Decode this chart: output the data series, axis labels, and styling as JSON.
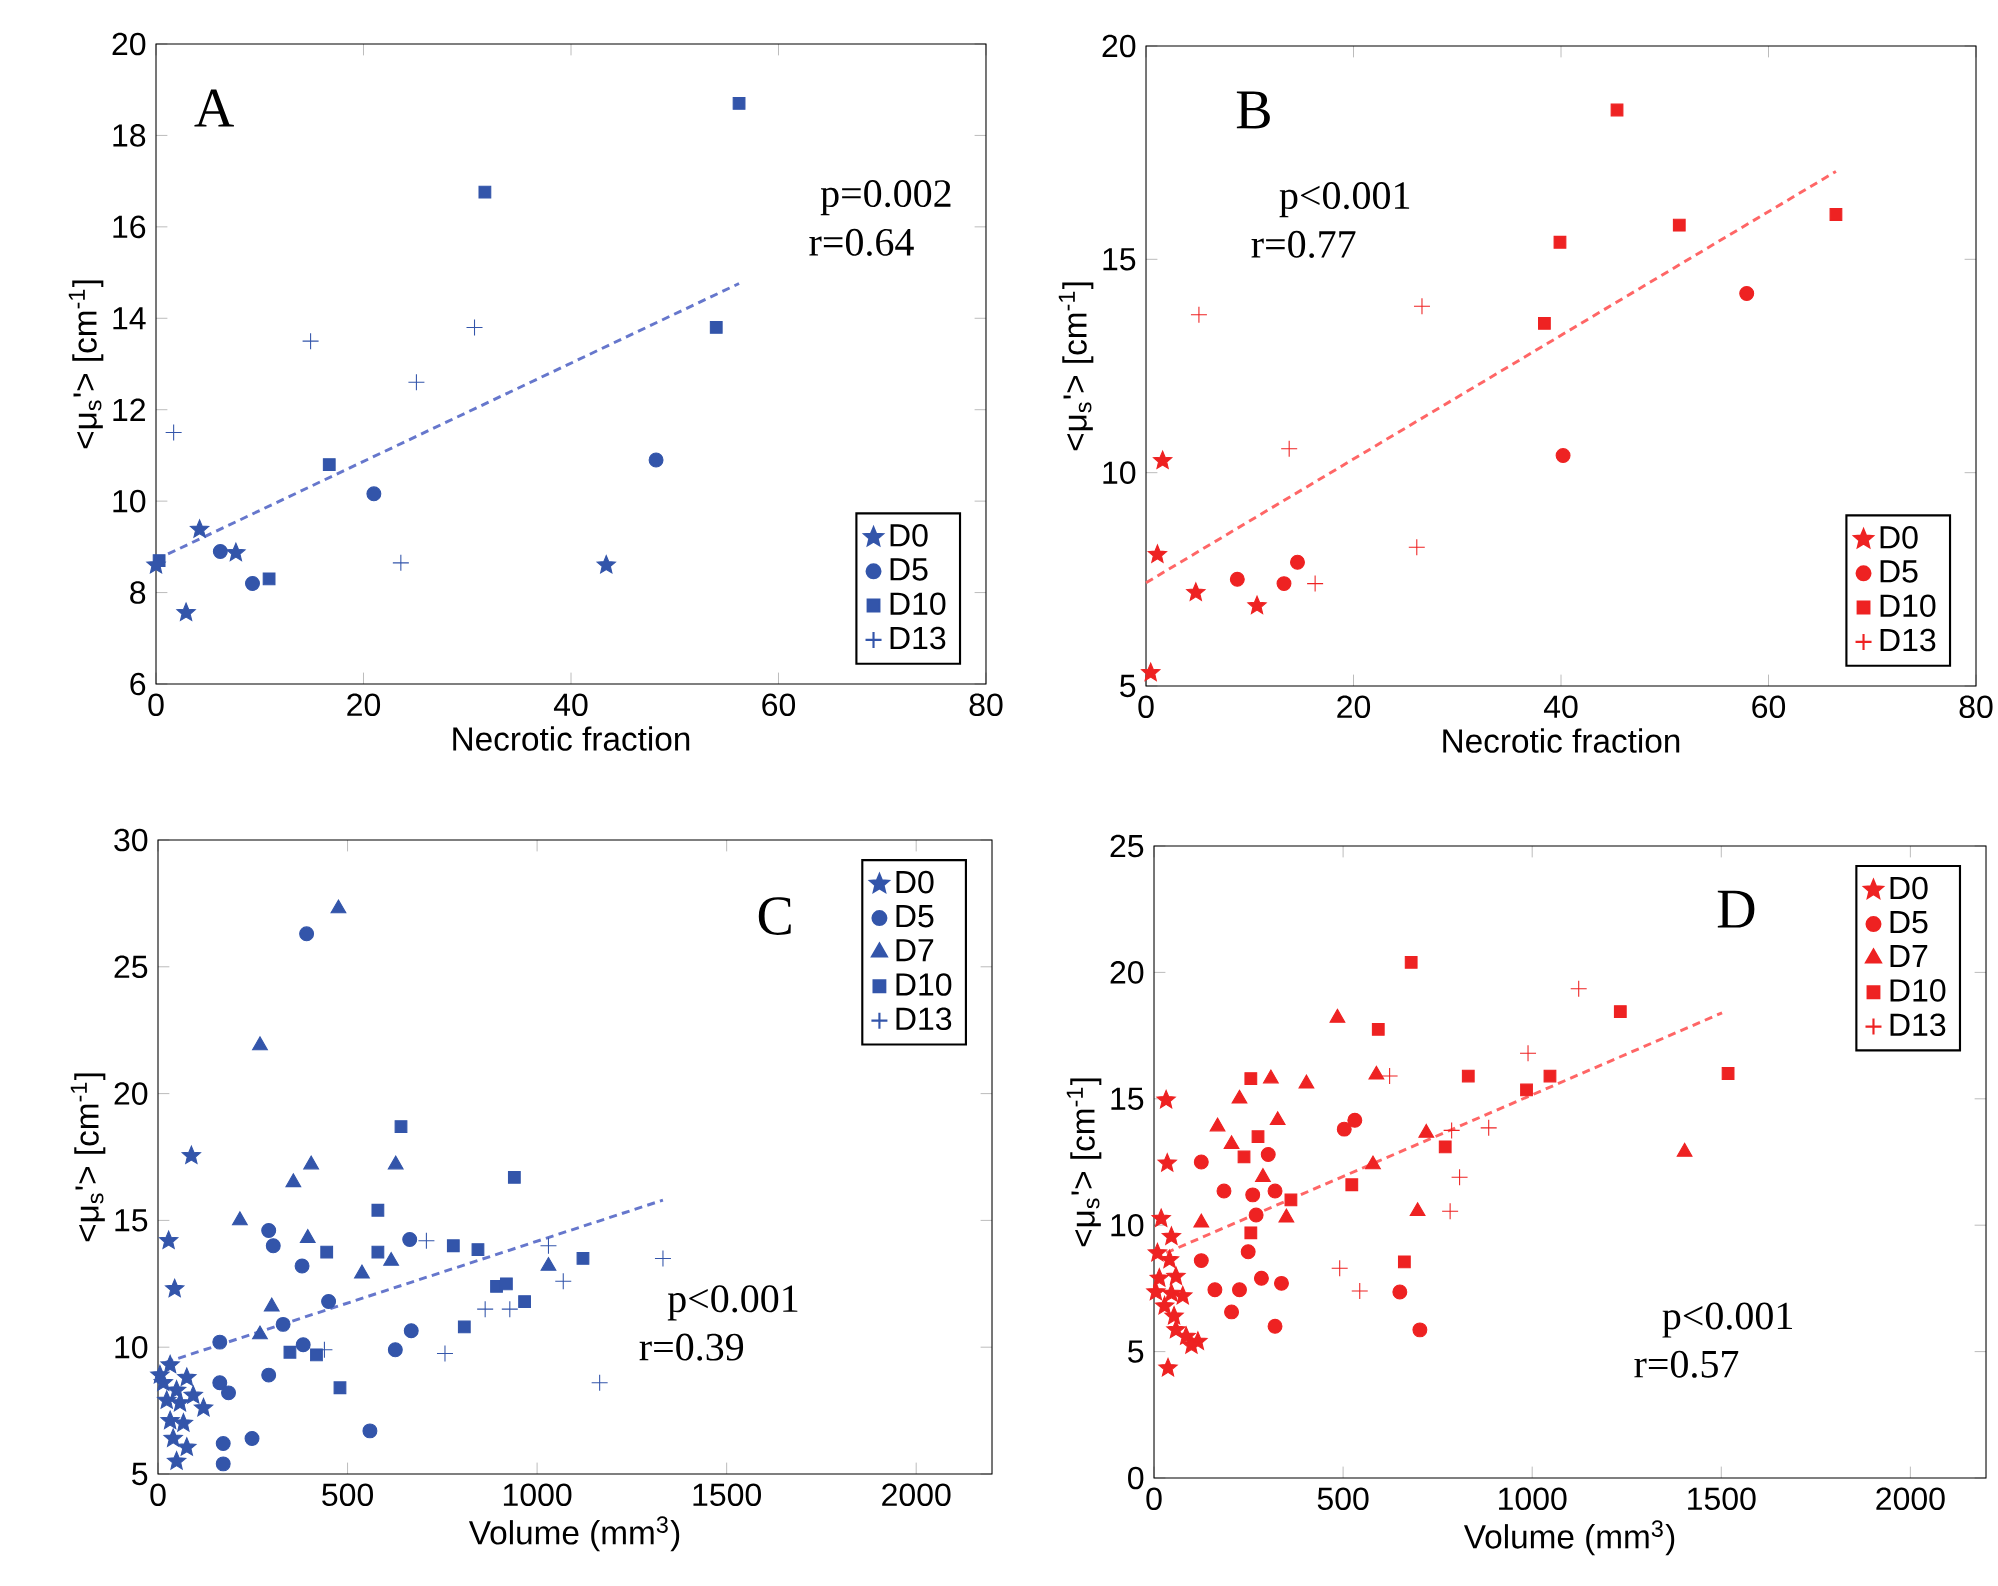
{
  "chart_data": [
    {
      "type": "scatter",
      "title": "A",
      "xlabel": "Necrotic fraction",
      "ylabel": "<μ$_{s}$'> [cm$^{-1}$]",
      "annotations": [
        "p=0.002",
        "r=0.64"
      ],
      "xlim": [
        0,
        80
      ],
      "ylim": [
        6,
        20
      ],
      "xticks": [
        0,
        20,
        40,
        60,
        80
      ],
      "yticks": [
        6,
        8,
        10,
        12,
        14,
        16,
        18,
        20
      ],
      "legend": "bottom right",
      "series": [
        {
          "name": "D0",
          "color": "#3355aa",
          "marker": "star",
          "x": [
            4.2,
            2.9,
            7.7,
            0,
            43.4
          ],
          "values": [
            9.38,
            7.56,
            8.87,
            8.6,
            8.6
          ]
        },
        {
          "name": "D5",
          "color": "#3355aa",
          "marker": "circle",
          "x": [
            6.2,
            9.3,
            21,
            48.2
          ],
          "values": [
            8.9,
            8.2,
            10.16,
            10.9
          ]
        },
        {
          "name": "D10",
          "color": "#3355aa",
          "marker": "square",
          "x": [
            0.3,
            10.9,
            16.7,
            31.7,
            54,
            56.2
          ],
          "values": [
            8.7,
            8.3,
            10.8,
            16.76,
            13.8,
            18.7
          ]
        },
        {
          "name": "D13",
          "color": "#3355aa",
          "marker": "cross",
          "x": [
            1.7,
            14.9,
            25.1,
            30.7,
            23.6
          ],
          "values": [
            11.5,
            13.5,
            12.6,
            13.8,
            8.65
          ]
        },
        {
          "type": "line",
          "color": "#6677cc",
          "marker": "none",
          "line_style": "dashed",
          "x": [
            0,
            56.2
          ],
          "values": [
            8.72,
            14.76
          ]
        }
      ]
    },
    {
      "type": "scatter",
      "title": "B",
      "xlabel": "Necrotic fraction",
      "ylabel": "<μ$_{s}$'> [cm$^{-1}$]",
      "annotations": [
        "p<0.001",
        "r=0.77"
      ],
      "xlim": [
        0,
        80
      ],
      "ylim": [
        5,
        20
      ],
      "xticks": [
        0,
        20,
        40,
        60,
        80
      ],
      "yticks": [
        5,
        10,
        15,
        20
      ],
      "legend": "bottom right",
      "series": [
        {
          "name": "D0",
          "color": "#ee2222",
          "marker": "star",
          "x": [
            0.45,
            1.1,
            1.6,
            4.8,
            10.7
          ],
          "values": [
            5.31,
            8.08,
            10.28,
            7.19,
            6.88
          ]
        },
        {
          "name": "D5",
          "color": "#ee2222",
          "marker": "circle",
          "x": [
            8.8,
            13.3,
            14.6,
            40.2,
            57.9
          ],
          "values": [
            7.5,
            7.4,
            7.9,
            10.4,
            14.2
          ]
        },
        {
          "name": "D10",
          "color": "#ee2222",
          "marker": "square",
          "x": [
            38.4,
            39.9,
            45.4,
            51.4,
            66.5
          ],
          "values": [
            13.5,
            15.4,
            18.5,
            15.8,
            16.05
          ]
        },
        {
          "name": "D13",
          "color": "#ee2222",
          "marker": "cross",
          "x": [
            5.1,
            13.8,
            16.3,
            26.1,
            26.6
          ],
          "values": [
            13.7,
            10.56,
            7.4,
            8.25,
            13.9
          ]
        },
        {
          "type": "line",
          "color": "#ff6666",
          "marker": "none",
          "line_style": "dashed",
          "x": [
            0,
            66.5
          ],
          "values": [
            7.42,
            17.06
          ]
        }
      ]
    },
    {
      "type": "scatter",
      "title": "C",
      "xlabel": "Volume (mm$^{3}$)",
      "ylabel": "<μ$_{s}$'> [cm$^{-1}$]",
      "annotations": [
        "p<0.001",
        "r=0.39"
      ],
      "xlim": [
        0,
        2200
      ],
      "ylim": [
        5,
        30
      ],
      "xticks": [
        0,
        500,
        1000,
        1500,
        2000
      ],
      "yticks": [
        5,
        10,
        15,
        20,
        25,
        30
      ],
      "legend": "top right",
      "series": [
        {
          "name": "D0",
          "color": "#3355aa",
          "marker": "star",
          "x": [
            28,
            44,
            88,
            32,
            14,
            49,
            76,
            23,
            58,
            120,
            32,
            67,
            40,
            76,
            49,
            5,
            93
          ],
          "values": [
            14.2,
            12.3,
            17.55,
            9.3,
            8.6,
            8.3,
            8.8,
            7.9,
            7.8,
            7.6,
            7.1,
            7.0,
            6.4,
            6.05,
            5.5,
            8.9,
            8.1
          ]
        },
        {
          "name": "D5",
          "color": "#3355aa",
          "marker": "circle",
          "x": [
            392,
            292,
            304,
            380,
            163,
            330,
            383,
            450,
            664,
            668,
            626,
            292,
            163,
            186,
            248,
            172,
            559,
            172
          ],
          "values": [
            26.3,
            14.6,
            14.0,
            13.2,
            10.2,
            10.9,
            10.1,
            11.8,
            14.25,
            10.65,
            9.9,
            8.9,
            8.6,
            8.2,
            6.4,
            6.2,
            6.7,
            5.4
          ]
        },
        {
          "name": "D7",
          "color": "#3355aa",
          "marker": "triangle",
          "x": [
            476,
            269,
            404,
            357,
            627,
            216,
            395,
            538,
            615,
            300,
            269,
            1030
          ],
          "values": [
            27.3,
            21.9,
            17.2,
            16.5,
            17.2,
            15.0,
            14.3,
            12.9,
            13.4,
            11.6,
            10.5,
            13.2
          ]
        },
        {
          "name": "D10",
          "color": "#3355aa",
          "marker": "square",
          "x": [
            641,
            940,
            580,
            580,
            445,
            779,
            844,
            1121,
            893,
            919,
            967,
            808,
            348,
            418,
            480
          ],
          "values": [
            18.7,
            16.7,
            15.4,
            13.75,
            13.75,
            14.0,
            13.85,
            13.5,
            12.4,
            12.5,
            11.8,
            10.8,
            9.8,
            9.7,
            8.4
          ]
        },
        {
          "name": "D13",
          "color": "#3355aa",
          "marker": "cross",
          "x": [
            708,
            1030,
            1069,
            1332,
            863,
            928,
            757,
            439,
            1165
          ],
          "values": [
            14.2,
            14.0,
            12.6,
            13.5,
            11.5,
            11.5,
            9.75,
            9.9,
            8.6
          ]
        },
        {
          "type": "line",
          "color": "#6677cc",
          "marker": "none",
          "line_style": "dashed",
          "x": [
            20,
            1332
          ],
          "values": [
            9.4,
            15.8
          ]
        }
      ]
    },
    {
      "type": "scatter",
      "title": "D",
      "xlabel": "Volume (mm$^{3}$)",
      "ylabel": "<μ$_{s}$'> [cm$^{-1}$]",
      "annotations": [
        "p<0.001",
        "r=0.57"
      ],
      "xlim": [
        0,
        2200
      ],
      "ylim": [
        0,
        25
      ],
      "xticks": [
        0,
        500,
        1000,
        1500,
        2000
      ],
      "yticks": [
        0,
        5,
        10,
        15,
        20,
        25
      ],
      "legend": "top right",
      "series": [
        {
          "name": "D0",
          "color": "#ee2222",
          "marker": "star",
          "x": [
            32,
            35,
            19,
            46,
            9,
            41,
            14,
            58,
            5,
            46,
            76,
            28,
            53,
            58,
            85,
            116,
            99,
            37
          ],
          "values": [
            14.95,
            12.45,
            10.26,
            9.55,
            8.9,
            8.63,
            7.9,
            7.97,
            7.36,
            7.3,
            7.2,
            6.8,
            6.4,
            5.86,
            5.6,
            5.4,
            5.25,
            4.35
          ]
        },
        {
          "name": "D5",
          "color": "#ee2222",
          "marker": "circle",
          "x": [
            125,
            185,
            302,
            261,
            320,
            270,
            503,
            531,
            125,
            249,
            161,
            226,
            284,
            337,
            205,
            320,
            650,
            703
          ],
          "values": [
            12.5,
            11.35,
            12.8,
            11.2,
            11.35,
            10.4,
            13.8,
            14.15,
            8.6,
            8.95,
            7.45,
            7.45,
            7.9,
            7.7,
            6.57,
            6.0,
            7.36,
            5.86
          ]
        },
        {
          "name": "D7",
          "color": "#ee2222",
          "marker": "triangle",
          "x": [
            485,
            309,
            403,
            588,
            226,
            168,
            205,
            327,
            720,
            579,
            288,
            125,
            350,
            697,
            1403
          ],
          "values": [
            18.2,
            15.8,
            15.6,
            15.95,
            15.0,
            13.9,
            13.2,
            14.15,
            13.65,
            12.4,
            11.9,
            10.1,
            10.3,
            10.55,
            12.9
          ]
        },
        {
          "name": "D10",
          "color": "#ee2222",
          "marker": "square",
          "x": [
            680,
            593,
            1233,
            256,
            831,
            1047,
            1518,
            985,
            275,
            238,
            770,
            523,
            256,
            362,
            662
          ],
          "values": [
            20.4,
            17.75,
            18.45,
            15.8,
            15.9,
            15.9,
            16.0,
            15.35,
            13.5,
            12.7,
            13.1,
            11.6,
            9.7,
            11.0,
            8.55
          ]
        },
        {
          "name": "D13",
          "color": "#ee2222",
          "marker": "cross",
          "x": [
            1123,
            989,
            623,
            787,
            885,
            808,
            783,
            491,
            544
          ],
          "values": [
            19.35,
            16.8,
            15.9,
            13.75,
            13.85,
            11.9,
            10.55,
            8.3,
            7.4
          ]
        },
        {
          "type": "line",
          "color": "#ff6666",
          "marker": "none",
          "line_style": "dashed",
          "x": [
            0,
            1502
          ],
          "values": [
            8.7,
            18.4
          ]
        }
      ]
    }
  ]
}
